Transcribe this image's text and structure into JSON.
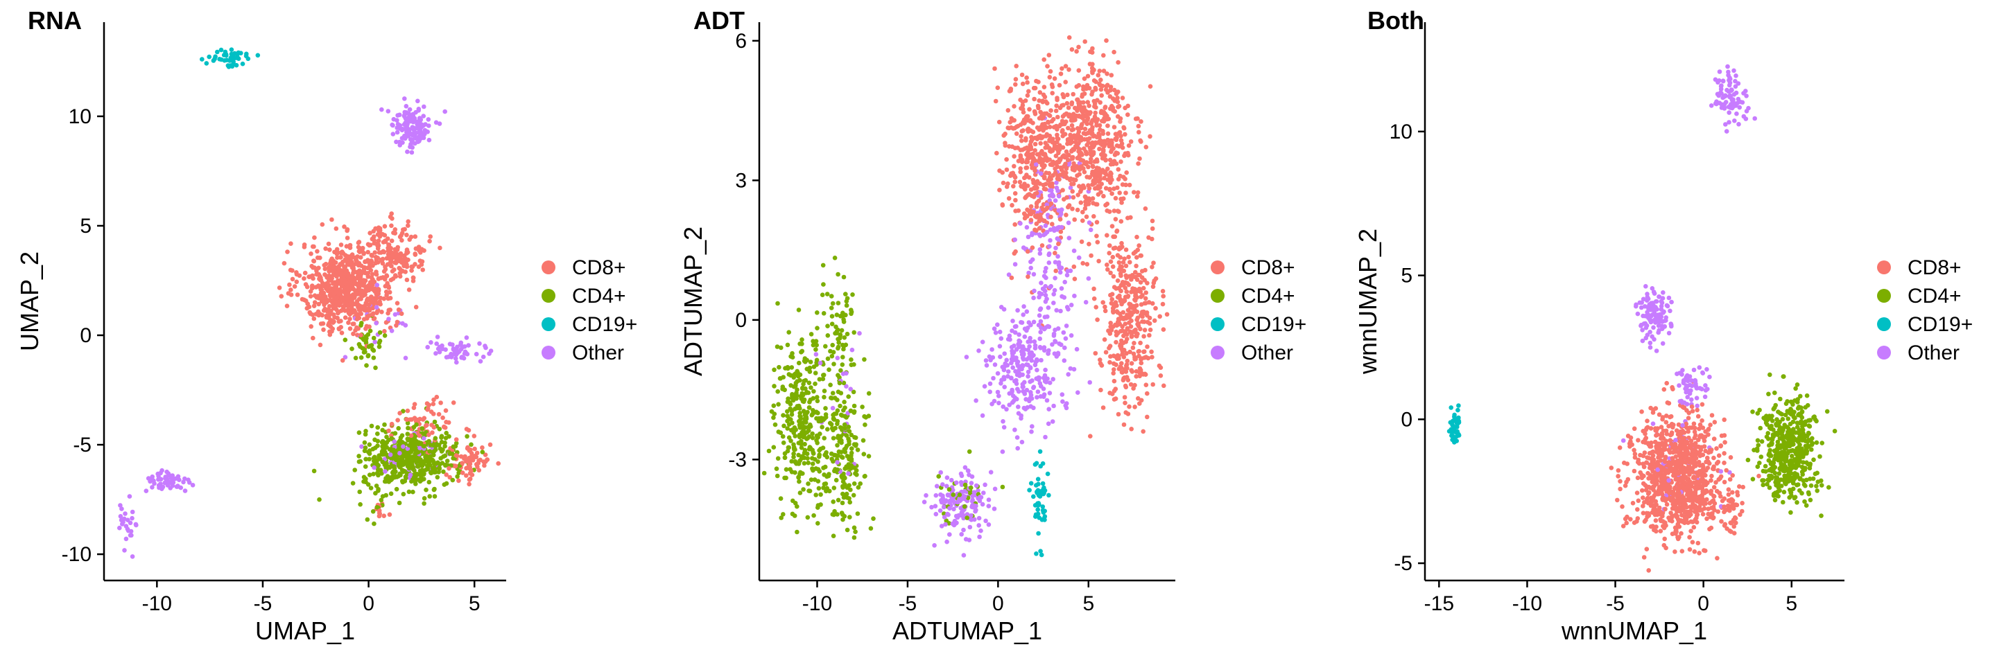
{
  "figure": {
    "title": "",
    "background": "#ffffff"
  },
  "legend": [
    {
      "key": "CD8",
      "label": "CD8+",
      "color": "#F8766D"
    },
    {
      "key": "CD4",
      "label": "CD4+",
      "color": "#7CAE00"
    },
    {
      "key": "CD19",
      "label": "CD19+",
      "color": "#00BFC4"
    },
    {
      "key": "Other",
      "label": "Other",
      "color": "#C77CFF"
    }
  ],
  "chart_data": [
    {
      "type": "scatter",
      "title": "RNA",
      "xlabel": "UMAP_1",
      "ylabel": "UMAP_2",
      "xlim": [
        -12.5,
        6.5
      ],
      "ylim": [
        -11.2,
        14.3
      ],
      "xticks": [
        -10,
        -5,
        0,
        5
      ],
      "yticks": [
        -10,
        -5,
        0,
        5,
        10
      ],
      "xtick_labels": [
        "-10",
        "-5",
        "0",
        "5"
      ],
      "ytick_labels": [
        "-10",
        "-5",
        "0",
        "5",
        "10"
      ],
      "clusters": [
        {
          "class": "CD8",
          "cx": -1.0,
          "cy": 2.2,
          "sx": 1.3,
          "sy": 1.2,
          "n": 700
        },
        {
          "class": "CD8",
          "cx": 1.2,
          "cy": 3.8,
          "sx": 0.9,
          "sy": 0.8,
          "n": 160
        },
        {
          "class": "CD8",
          "cx": 4.8,
          "cy": -5.8,
          "sx": 0.6,
          "sy": 0.5,
          "n": 70
        },
        {
          "class": "CD8",
          "cx": 2.5,
          "cy": -4.0,
          "sx": 0.9,
          "sy": 0.6,
          "n": 60
        },
        {
          "class": "CD8",
          "cx": 0.6,
          "cy": -8.0,
          "sx": 0.3,
          "sy": 0.3,
          "n": 10
        },
        {
          "class": "CD4",
          "cx": 2.0,
          "cy": -5.6,
          "sx": 1.3,
          "sy": 0.8,
          "n": 520
        },
        {
          "class": "CD4",
          "cx": -0.2,
          "cy": -0.5,
          "sx": 0.5,
          "sy": 0.6,
          "n": 40
        },
        {
          "class": "CD4",
          "cx": 0.5,
          "cy": -8.0,
          "sx": 0.4,
          "sy": 0.5,
          "n": 10
        },
        {
          "class": "CD19",
          "cx": -6.5,
          "cy": 12.7,
          "sx": 0.6,
          "sy": 0.25,
          "n": 45
        },
        {
          "class": "Other",
          "cx": 2.0,
          "cy": 9.5,
          "sx": 0.6,
          "sy": 0.6,
          "n": 130
        },
        {
          "class": "Other",
          "cx": 4.2,
          "cy": -0.7,
          "sx": 0.9,
          "sy": 0.4,
          "n": 55
        },
        {
          "class": "Other",
          "cx": -9.5,
          "cy": -6.7,
          "sx": 0.6,
          "sy": 0.3,
          "n": 55
        },
        {
          "class": "Other",
          "cx": -11.4,
          "cy": -9.0,
          "sx": 0.3,
          "sy": 0.9,
          "n": 25
        },
        {
          "class": "Other",
          "cx": 2.0,
          "cy": -5.5,
          "sx": 1.2,
          "sy": 0.7,
          "n": 40
        },
        {
          "class": "Other",
          "cx": 0.5,
          "cy": 0.5,
          "sx": 1.0,
          "sy": 1.0,
          "n": 20
        }
      ]
    },
    {
      "type": "scatter",
      "title": "ADT",
      "xlabel": "ADTUMAP_1",
      "ylabel": "ADTUMAP_2",
      "xlim": [
        -13.2,
        9.8
      ],
      "ylim": [
        -5.6,
        6.4
      ],
      "xticks": [
        -10,
        -5,
        0,
        5
      ],
      "yticks": [
        -3,
        0,
        3,
        6
      ],
      "xtick_labels": [
        "-10",
        "-5",
        "0",
        "5"
      ],
      "ytick_labels": [
        "-3",
        "0",
        "3",
        "6"
      ],
      "clusters": [
        {
          "class": "CD8",
          "cx": 2.2,
          "cy": 3.5,
          "sx": 1.1,
          "sy": 1.1,
          "n": 450
        },
        {
          "class": "CD8",
          "cx": 5.2,
          "cy": 3.8,
          "sx": 1.3,
          "sy": 1.1,
          "n": 550
        },
        {
          "class": "CD8",
          "cx": 7.2,
          "cy": 0.0,
          "sx": 0.9,
          "sy": 1.2,
          "n": 380
        },
        {
          "class": "CD4",
          "cx": -10.8,
          "cy": -2.2,
          "sx": 0.9,
          "sy": 1.1,
          "n": 330
        },
        {
          "class": "CD4",
          "cx": -8.5,
          "cy": -2.8,
          "sx": 0.7,
          "sy": 1.0,
          "n": 200
        },
        {
          "class": "CD4",
          "cx": -8.8,
          "cy": -0.2,
          "sx": 0.5,
          "sy": 0.6,
          "n": 60
        },
        {
          "class": "CD4",
          "cx": -2.0,
          "cy": -3.8,
          "sx": 0.8,
          "sy": 0.4,
          "n": 30
        },
        {
          "class": "CD19",
          "cx": 2.3,
          "cy": -3.9,
          "sx": 0.25,
          "sy": 0.5,
          "n": 50
        },
        {
          "class": "Other",
          "cx": 1.5,
          "cy": -1.0,
          "sx": 1.3,
          "sy": 0.8,
          "n": 260
        },
        {
          "class": "Other",
          "cx": 3.0,
          "cy": 1.5,
          "sx": 1.0,
          "sy": 1.3,
          "n": 150
        },
        {
          "class": "Other",
          "cx": -2.0,
          "cy": -4.0,
          "sx": 1.0,
          "sy": 0.45,
          "n": 150
        },
        {
          "class": "Other",
          "cx": -8.8,
          "cy": -1.5,
          "sx": 0.8,
          "sy": 1.2,
          "n": 20
        }
      ]
    },
    {
      "type": "scatter",
      "title": "Both",
      "xlabel": "wnnUMAP_1",
      "ylabel": "wnnUMAP_2",
      "xlim": [
        -15.8,
        8.0
      ],
      "ylim": [
        -5.6,
        13.8
      ],
      "xticks": [
        -15,
        -10,
        -5,
        0,
        5
      ],
      "yticks": [
        -5,
        0,
        5,
        10
      ],
      "xtick_labels": [
        "-15",
        "-10",
        "-5",
        "0",
        "5"
      ],
      "ytick_labels": [
        "-5",
        "0",
        "5",
        "10"
      ],
      "clusters": [
        {
          "class": "CD8",
          "cx": -1.5,
          "cy": -2.0,
          "sx": 1.5,
          "sy": 1.2,
          "n": 950
        },
        {
          "class": "CD8",
          "cx": 1.5,
          "cy": -3.2,
          "sx": 0.4,
          "sy": 0.5,
          "n": 40
        },
        {
          "class": "CD4",
          "cx": 4.8,
          "cy": -1.0,
          "sx": 1.0,
          "sy": 1.0,
          "n": 450
        },
        {
          "class": "CD19",
          "cx": -14.1,
          "cy": -0.3,
          "sx": 0.15,
          "sy": 0.4,
          "n": 40
        },
        {
          "class": "Other",
          "cx": -2.8,
          "cy": 3.6,
          "sx": 0.6,
          "sy": 0.5,
          "n": 110
        },
        {
          "class": "Other",
          "cx": 1.5,
          "cy": 11.2,
          "sx": 0.5,
          "sy": 0.5,
          "n": 90
        },
        {
          "class": "Other",
          "cx": -0.7,
          "cy": 1.2,
          "sx": 0.5,
          "sy": 0.5,
          "n": 55
        },
        {
          "class": "Other",
          "cx": -1.5,
          "cy": -1.5,
          "sx": 1.3,
          "sy": 1.0,
          "n": 40
        }
      ]
    }
  ]
}
